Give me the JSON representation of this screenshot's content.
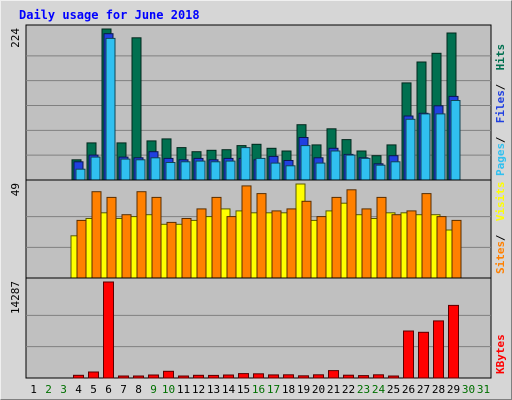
{
  "title": "Daily usage for June 2018",
  "colors": {
    "hits": "#007050",
    "files": "#2040e0",
    "pages": "#30c0f0",
    "visits": "#ffff00",
    "sites": "#ff8000",
    "kbytes": "#ff0000",
    "weekday_label": "#000000",
    "weekend_label": "#007000",
    "background": "#c0c0c0",
    "frame": "#d6d6d6"
  },
  "chart_data": [
    {
      "type": "bar",
      "name": "hits-files-pages",
      "ymax_label": "224",
      "ylim": [
        0,
        224
      ],
      "legend": [
        "Pages",
        "Files",
        "Hits"
      ],
      "legend_colors": [
        "#30c0f0",
        "#2040e0",
        "#007050"
      ],
      "categories": [
        "1",
        "2",
        "3",
        "4",
        "5",
        "6",
        "7",
        "8",
        "9",
        "10",
        "11",
        "12",
        "13",
        "14",
        "15",
        "16",
        "17",
        "18",
        "19",
        "20",
        "21",
        "22",
        "23",
        "24",
        "25",
        "26",
        "27",
        "28",
        "29",
        "30",
        "31"
      ],
      "series": [
        {
          "name": "Hits",
          "color": "#007050",
          "values": [
            0,
            0,
            0,
            30,
            55,
            224,
            55,
            211,
            58,
            61,
            48,
            42,
            44,
            45,
            51,
            53,
            47,
            43,
            82,
            52,
            76,
            60,
            43,
            36,
            52,
            144,
            175,
            188,
            218,
            0,
            0
          ]
        },
        {
          "name": "Files",
          "color": "#2040e0",
          "values": [
            0,
            0,
            0,
            27,
            37,
            217,
            34,
            33,
            42,
            32,
            30,
            32,
            30,
            32,
            32,
            30,
            35,
            29,
            63,
            33,
            47,
            38,
            33,
            24,
            36,
            95,
            99,
            110,
            124,
            0,
            0
          ]
        },
        {
          "name": "Pages",
          "color": "#30c0f0",
          "values": [
            0,
            0,
            0,
            16,
            34,
            210,
            31,
            30,
            33,
            26,
            27,
            28,
            27,
            28,
            48,
            32,
            25,
            21,
            51,
            25,
            43,
            37,
            32,
            22,
            27,
            90,
            98,
            98,
            118,
            0,
            0
          ]
        }
      ]
    },
    {
      "type": "bar",
      "name": "visits-sites",
      "ymax_label": "49",
      "ylim": [
        0,
        49
      ],
      "legend": [
        "Sites",
        "Visits"
      ],
      "legend_colors": [
        "#ff8000",
        "#ffff00"
      ],
      "categories": [
        "1",
        "2",
        "3",
        "4",
        "5",
        "6",
        "7",
        "8",
        "9",
        "10",
        "11",
        "12",
        "13",
        "14",
        "15",
        "16",
        "17",
        "18",
        "19",
        "20",
        "21",
        "22",
        "23",
        "24",
        "25",
        "26",
        "27",
        "28",
        "29",
        "30",
        "31"
      ],
      "series": [
        {
          "name": "Visits",
          "color": "#ffff00",
          "values": [
            0,
            0,
            0,
            22,
            31,
            34,
            31,
            32,
            33,
            28,
            28,
            30,
            32,
            36,
            35,
            34,
            34,
            34,
            49,
            30,
            35,
            39,
            33,
            31,
            34,
            34,
            33,
            33,
            25,
            0,
            0
          ]
        },
        {
          "name": "Sites",
          "color": "#ff8000",
          "values": [
            0,
            0,
            0,
            30,
            45,
            42,
            33,
            45,
            42,
            29,
            31,
            36,
            42,
            32,
            48,
            44,
            35,
            36,
            40,
            32,
            42,
            46,
            36,
            42,
            33,
            35,
            44,
            32,
            30,
            0,
            0
          ]
        }
      ]
    },
    {
      "type": "bar",
      "name": "kbytes",
      "ymax_label": "14287",
      "ylim": [
        0,
        14287
      ],
      "legend": [
        "KBytes"
      ],
      "legend_colors": [
        "#ff0000"
      ],
      "categories": [
        "1",
        "2",
        "3",
        "4",
        "5",
        "6",
        "7",
        "8",
        "9",
        "10",
        "11",
        "12",
        "13",
        "14",
        "15",
        "16",
        "17",
        "18",
        "19",
        "20",
        "21",
        "22",
        "23",
        "24",
        "25",
        "26",
        "27",
        "28",
        "29",
        "30",
        "31"
      ],
      "series": [
        {
          "name": "KBytes",
          "color": "#ff0000",
          "values": [
            0,
            0,
            0,
            400,
            900,
            14287,
            300,
            300,
            450,
            1000,
            300,
            400,
            380,
            450,
            650,
            620,
            460,
            470,
            330,
            480,
            1100,
            420,
            350,
            470,
            300,
            7000,
            6800,
            8500,
            10800,
            0,
            0
          ]
        }
      ]
    }
  ],
  "x_labels": [
    "1",
    "2",
    "3",
    "4",
    "5",
    "6",
    "7",
    "8",
    "9",
    "10",
    "11",
    "12",
    "13",
    "14",
    "15",
    "16",
    "17",
    "18",
    "19",
    "20",
    "21",
    "22",
    "23",
    "24",
    "25",
    "26",
    "27",
    "28",
    "29",
    "30",
    "31"
  ],
  "weekend_days": [
    "2",
    "3",
    "9",
    "10",
    "16",
    "17",
    "23",
    "24",
    "30",
    "31"
  ]
}
